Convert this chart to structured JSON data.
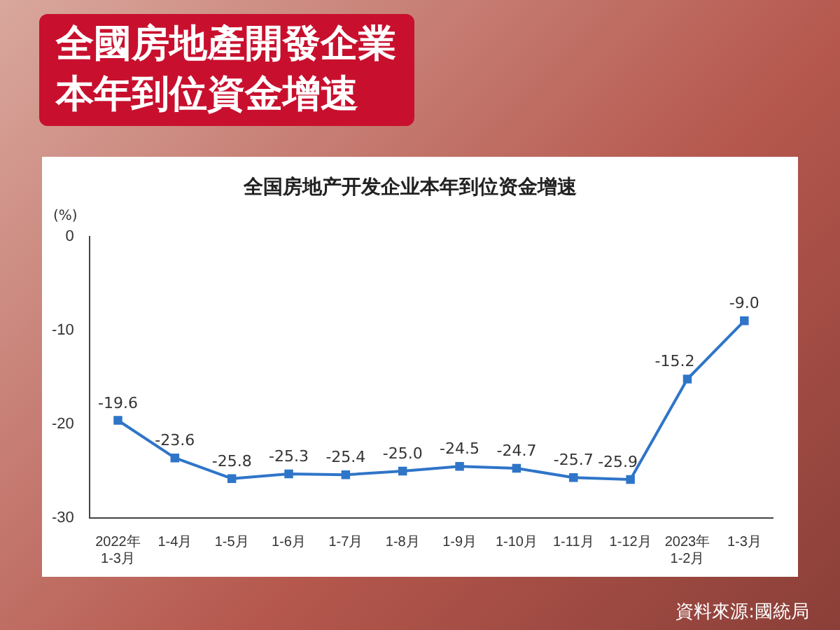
{
  "chart_data": {
    "type": "line",
    "title": "全國房地產開發企業本年到位資金增速",
    "subtitle": "全国房地产开发企业本年到位资金增速",
    "ylabel": "(%)",
    "categories": [
      "2022年\n1-3月",
      "1-4月",
      "1-5月",
      "1-6月",
      "1-7月",
      "1-8月",
      "1-9月",
      "1-10月",
      "1-11月",
      "1-12月",
      "2023年\n1-2月",
      "1-3月"
    ],
    "series": [
      {
        "color": "#2f75c8",
        "values": [
          -19.6,
          -23.6,
          -25.8,
          -25.3,
          -25.4,
          -25.0,
          -24.5,
          -24.7,
          -25.7,
          -25.9,
          -15.2,
          -9.0
        ],
        "value_labels": [
          "-19.6",
          "-23.6",
          "-25.8",
          "-25.3",
          "-25.4",
          "-25.0",
          "-24.5",
          "-24.7",
          "-25.7",
          "-25.9",
          "-15.2",
          "-9.0"
        ]
      }
    ],
    "ylim": [
      -30,
      0
    ],
    "yticks": [
      -30,
      -20,
      -10,
      0
    ],
    "grid": false,
    "legend": false,
    "marker": "square",
    "line_style": "solid",
    "annotations": [
      "資料來源:國統局"
    ]
  }
}
